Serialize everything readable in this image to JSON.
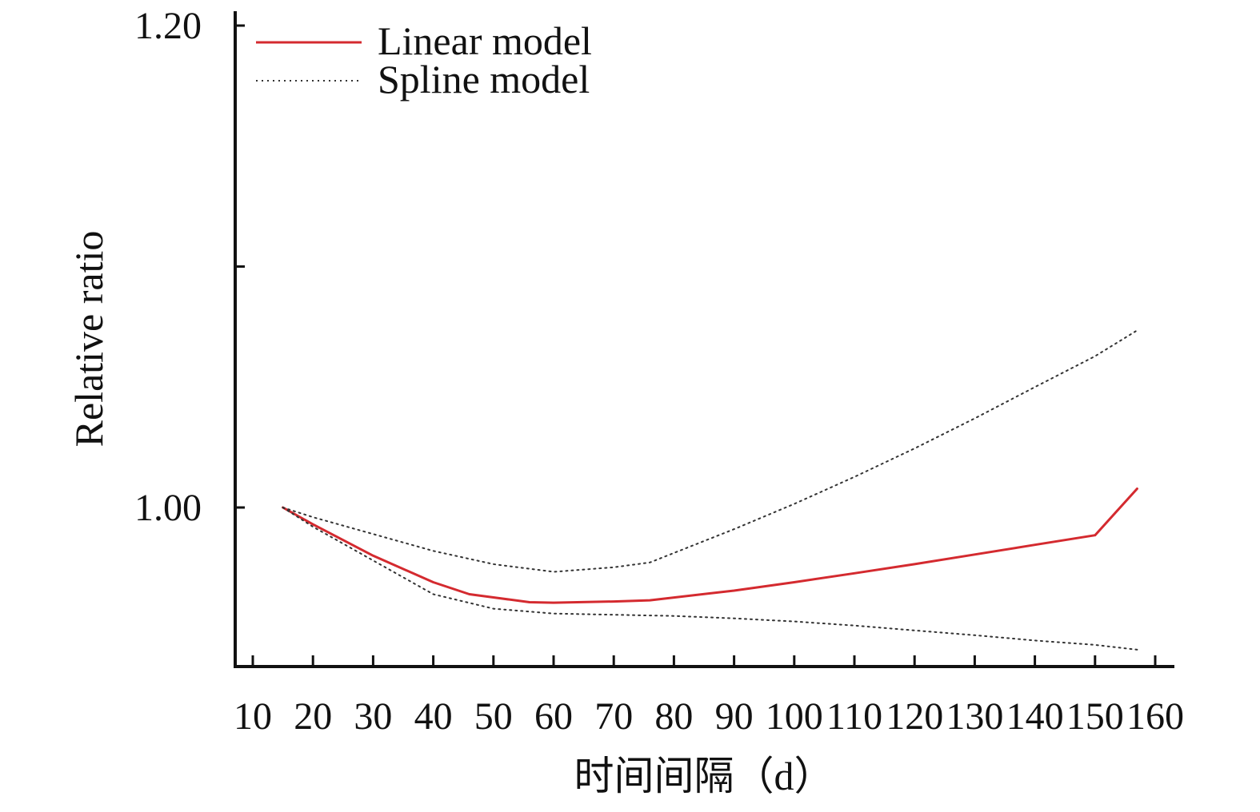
{
  "chart_data": {
    "type": "line",
    "title": "",
    "xlabel": "时间间隔（d）",
    "ylabel": "Relative ratio",
    "x_ticks": [
      "10",
      "20",
      "30",
      "40",
      "50",
      "60",
      "70",
      "80",
      "90",
      "100",
      "110",
      "120",
      "130",
      "140",
      "150",
      "160"
    ],
    "x_range": [
      10,
      160
    ],
    "y_ticks": [
      {
        "value": 1.0,
        "label": "1.00"
      },
      {
        "value": 1.1,
        "label": ""
      },
      {
        "value": 1.2,
        "label": "1.20"
      }
    ],
    "y_range": [
      0.934,
      1.2
    ],
    "grid": false,
    "legend_position": "top-left",
    "series": [
      {
        "name": "Linear model",
        "style": "solid",
        "color": "#d42a2f",
        "x": [
          15,
          20,
          30,
          40,
          46,
          50,
          56,
          60,
          70,
          76,
          90,
          100,
          110,
          120,
          130,
          140,
          150,
          157
        ],
        "y": [
          1.0,
          0.993,
          0.98,
          0.969,
          0.964,
          0.9627,
          0.9607,
          0.9605,
          0.961,
          0.9615,
          0.9655,
          0.969,
          0.9727,
          0.9765,
          0.9805,
          0.9845,
          0.9885,
          1.0078
        ]
      },
      {
        "name": "Spline model",
        "style": "dotted",
        "color": "#333333",
        "x": [
          15,
          20,
          30,
          40,
          50,
          60,
          70,
          76,
          90,
          100,
          110,
          120,
          130,
          140,
          150,
          157
        ],
        "y": [
          1.0,
          0.996,
          0.989,
          0.982,
          0.9765,
          0.9733,
          0.9752,
          0.9772,
          0.991,
          1.0015,
          1.0127,
          1.0245,
          1.037,
          1.05,
          1.0628,
          1.0735
        ]
      },
      {
        "name": "",
        "style": "dotted",
        "color": "#333333",
        "x": [
          15,
          20,
          30,
          40,
          50,
          60,
          70,
          80,
          90,
          100,
          110,
          120,
          130,
          140,
          150,
          157
        ],
        "y": [
          1.0,
          0.992,
          0.978,
          0.964,
          0.958,
          0.956,
          0.9555,
          0.955,
          0.954,
          0.9527,
          0.951,
          0.949,
          0.947,
          0.9448,
          0.943,
          0.941
        ]
      }
    ],
    "colors": {
      "axis": "#111111",
      "linear": "#d42a2f",
      "spline": "#333333"
    }
  }
}
